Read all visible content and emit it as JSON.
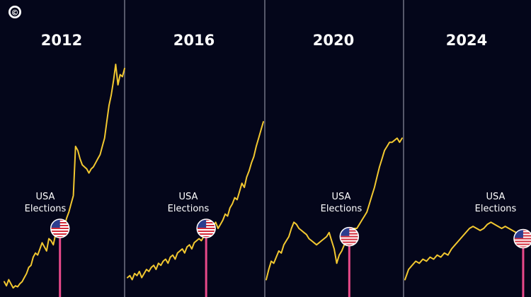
{
  "colors": {
    "background": "#04061a",
    "line": "#f2c830",
    "marker_stem": "#e8498a",
    "divider": "#8d8fa0",
    "text": "#ffffff"
  },
  "logo": {
    "icon": "copyright-icon",
    "glyph": "©"
  },
  "election_label": [
    "USA",
    "Elections"
  ],
  "marker_icon": "us-flag-icon",
  "chart_data": [
    {
      "type": "line",
      "title": "2012",
      "series": [
        {
          "values": [
            0.04,
            0.02,
            0.05,
            0.03,
            0.01,
            0.02,
            0.015,
            0.03,
            0.04,
            0.06,
            0.08,
            0.11,
            0.12,
            0.16,
            0.18,
            0.17,
            0.2,
            0.23,
            0.21,
            0.19,
            0.25,
            0.24,
            0.22,
            0.27,
            0.26,
            0.3,
            0.33,
            0.31,
            0.35,
            0.38,
            0.42,
            0.46,
            0.7,
            0.68,
            0.64,
            0.61,
            0.6,
            0.59,
            0.57,
            0.59,
            0.6,
            0.62,
            0.64,
            0.66,
            0.7,
            0.74,
            0.82,
            0.9,
            0.95,
            1.02,
            1.1,
            1.0,
            1.05,
            1.04,
            1.08
          ]
        }
      ],
      "election_index": 25
    },
    {
      "type": "line",
      "title": "2016",
      "series": [
        {
          "values": [
            0.06,
            0.07,
            0.05,
            0.08,
            0.07,
            0.09,
            0.06,
            0.08,
            0.1,
            0.09,
            0.11,
            0.12,
            0.1,
            0.13,
            0.12,
            0.14,
            0.15,
            0.13,
            0.16,
            0.17,
            0.15,
            0.18,
            0.19,
            0.2,
            0.18,
            0.21,
            0.22,
            0.2,
            0.23,
            0.24,
            0.25,
            0.24,
            0.26,
            0.3,
            0.28,
            0.32,
            0.31,
            0.33,
            0.3,
            0.32,
            0.34,
            0.37,
            0.36,
            0.4,
            0.42,
            0.45,
            0.44,
            0.48,
            0.52,
            0.5,
            0.55,
            0.58,
            0.62,
            0.65,
            0.7,
            0.74,
            0.78,
            0.82
          ]
        }
      ],
      "election_index": 33
    },
    {
      "type": "line",
      "title": "2020",
      "series": [
        {
          "values": [
            0.05,
            0.1,
            0.14,
            0.13,
            0.16,
            0.19,
            0.18,
            0.22,
            0.24,
            0.26,
            0.3,
            0.33,
            0.32,
            0.3,
            0.29,
            0.28,
            0.27,
            0.25,
            0.24,
            0.23,
            0.22,
            0.23,
            0.24,
            0.25,
            0.26,
            0.28,
            0.24,
            0.2,
            0.13,
            0.17,
            0.19,
            0.22,
            0.25,
            0.26,
            0.28,
            0.3,
            0.3,
            0.32,
            0.34,
            0.36,
            0.38,
            0.42,
            0.46,
            0.5,
            0.55,
            0.6,
            0.64,
            0.68,
            0.7,
            0.72,
            0.72,
            0.73,
            0.74,
            0.72,
            0.74
          ]
        }
      ],
      "election_index": 33
    },
    {
      "type": "line",
      "title": "2024",
      "series": [
        {
          "values": [
            0.05,
            0.1,
            0.12,
            0.14,
            0.13,
            0.15,
            0.14,
            0.16,
            0.15,
            0.17,
            0.16,
            0.18,
            0.17,
            0.2,
            0.22,
            0.24,
            0.26,
            0.28,
            0.3,
            0.31,
            0.3,
            0.29,
            0.3,
            0.32,
            0.33,
            0.32,
            0.31,
            0.3,
            0.31,
            0.3,
            0.29,
            0.28,
            0.26,
            0.25,
            0.25
          ]
        }
      ],
      "election_index": 33
    }
  ]
}
